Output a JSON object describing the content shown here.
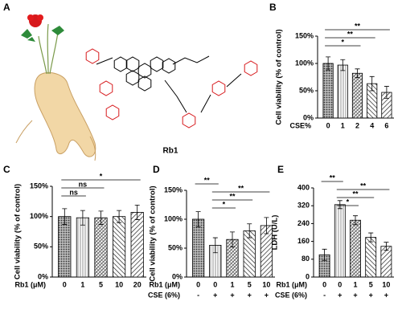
{
  "figure": {
    "panel": "A",
    "compound": "Rb1"
  },
  "chart_data": [
    {
      "type": "bar",
      "panel": "B",
      "ylabel": "Cell viability (% of control)",
      "xlabel": "CSE%",
      "categories": [
        "0",
        "1",
        "2",
        "4",
        "6"
      ],
      "values": [
        100,
        97,
        82,
        63,
        47
      ],
      "errors": [
        12,
        10,
        8,
        13,
        11
      ],
      "ylim": [
        0,
        150
      ],
      "yticks": [
        {
          "value": 0,
          "label": "0%"
        },
        {
          "value": 50,
          "label": "50%"
        },
        {
          "value": 100,
          "label": "100%"
        },
        {
          "value": 150,
          "label": "150%"
        }
      ],
      "significance": [
        {
          "from": 0,
          "to": 4,
          "label": "**"
        },
        {
          "from": 0,
          "to": 3,
          "label": "**"
        },
        {
          "from": 0,
          "to": 2,
          "label": "*"
        }
      ]
    },
    {
      "type": "bar",
      "panel": "C",
      "ylabel": "Cell viability (% of control)",
      "xlabel": "Rb1 (μM)",
      "categories": [
        "0",
        "1",
        "5",
        "10",
        "20"
      ],
      "values": [
        100,
        98,
        98,
        100,
        107
      ],
      "errors": [
        13,
        12,
        11,
        10,
        12
      ],
      "ylim": [
        0,
        150
      ],
      "yticks": [
        {
          "value": 0,
          "label": "0%"
        },
        {
          "value": 50,
          "label": "50%"
        },
        {
          "value": 100,
          "label": "100%"
        },
        {
          "value": 150,
          "label": "150%"
        }
      ],
      "significance": [
        {
          "from": 0,
          "to": 4,
          "label": "*"
        },
        {
          "from": 0,
          "to": 2,
          "label": "ns"
        },
        {
          "from": 0,
          "to": 1,
          "label": "ns"
        }
      ]
    },
    {
      "type": "bar",
      "panel": "D",
      "ylabel": "Cell viability (% of control)",
      "xlabel": "Rb1 (μM)",
      "xlabel2": "CSE (6%)",
      "categories": [
        "0",
        "0",
        "1",
        "5",
        "10"
      ],
      "categories2": [
        "-",
        "+",
        "+",
        "+",
        "+"
      ],
      "values": [
        100,
        55,
        65,
        80,
        89
      ],
      "errors": [
        13,
        13,
        13,
        12,
        14
      ],
      "ylim": [
        0,
        150
      ],
      "yticks": [
        {
          "value": 0,
          "label": "0%"
        },
        {
          "value": 50,
          "label": "50%"
        },
        {
          "value": 100,
          "label": "100%"
        },
        {
          "value": 150,
          "label": "150%"
        }
      ],
      "significance": [
        {
          "from": 0,
          "to": 1,
          "label": "**"
        },
        {
          "from": 1,
          "to": 4,
          "label": "**"
        },
        {
          "from": 1,
          "to": 3,
          "label": "**"
        },
        {
          "from": 1,
          "to": 2,
          "label": "*"
        }
      ]
    },
    {
      "type": "bar",
      "panel": "E",
      "ylabel": "LDH (U/L)",
      "xlabel": "Rb1 (μM)",
      "xlabel2": "CSE (6%)",
      "categories": [
        "0",
        "0",
        "1",
        "5",
        "10"
      ],
      "categories2": [
        "-",
        "+",
        "+",
        "+",
        "+"
      ],
      "values": [
        100,
        325,
        255,
        178,
        138
      ],
      "errors": [
        25,
        18,
        20,
        20,
        18
      ],
      "ylim": [
        0,
        400
      ],
      "yticks": [
        0,
        80,
        160,
        240,
        320,
        400
      ],
      "significance": [
        {
          "from": 0,
          "to": 1,
          "label": "**"
        },
        {
          "from": 1,
          "to": 4,
          "label": "**"
        },
        {
          "from": 1,
          "to": 3,
          "label": "**"
        },
        {
          "from": 1,
          "to": 2,
          "label": "*"
        }
      ]
    }
  ]
}
